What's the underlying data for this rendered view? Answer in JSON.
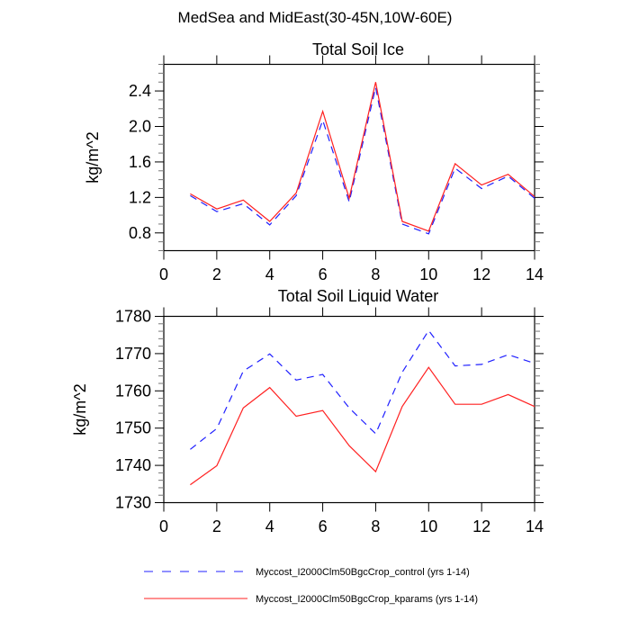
{
  "figure": {
    "title": "MedSea and MidEast(30-45N,10W-60E)"
  },
  "legend": [
    {
      "label": "Myccost_I2000Clm50BgcCrop_control (yrs 1-14)",
      "color": "#2020ff",
      "style": "dashed"
    },
    {
      "label": "Myccost_I2000Clm50BgcCrop_kparams (yrs 1-14)",
      "color": "#ff2020",
      "style": "solid"
    }
  ],
  "chart_data": [
    {
      "type": "line",
      "title": "Total Soil Ice",
      "xlabel": "",
      "ylabel": "kg/m^2",
      "xlim": [
        0,
        14
      ],
      "ylim": [
        0.6,
        2.7
      ],
      "xticks": [
        0,
        2,
        4,
        6,
        8,
        10,
        12,
        14
      ],
      "xtick_labels": [
        "0",
        "2",
        "4",
        "6",
        "8",
        "10",
        "12",
        "14"
      ],
      "yticks": [
        0.8,
        1.2,
        1.6,
        2.0,
        2.4
      ],
      "ytick_labels": [
        "0.8",
        "1.2",
        "1.6",
        "2.0",
        "2.4"
      ],
      "y_minor_step": 0.1,
      "x": [
        1,
        2,
        3,
        4,
        5,
        6,
        7,
        8,
        9,
        10,
        11,
        12,
        13,
        14
      ],
      "series": [
        {
          "name": "Myccost_I2000Clm50BgcCrop_control (yrs 1-14)",
          "color": "#2020ff",
          "style": "dashed",
          "values": [
            1.22,
            1.04,
            1.13,
            0.89,
            1.22,
            2.07,
            1.15,
            2.44,
            0.9,
            0.79,
            1.53,
            1.3,
            1.44,
            1.19
          ]
        },
        {
          "name": "Myccost_I2000Clm50BgcCrop_kparams (yrs 1-14)",
          "color": "#ff2020",
          "style": "solid",
          "values": [
            1.24,
            1.07,
            1.17,
            0.93,
            1.25,
            2.17,
            1.19,
            2.5,
            0.93,
            0.82,
            1.58,
            1.34,
            1.46,
            1.21
          ]
        }
      ],
      "grid": false
    },
    {
      "type": "line",
      "title": "Total Soil Liquid Water",
      "xlabel": "",
      "ylabel": "kg/m^2",
      "xlim": [
        0,
        14
      ],
      "ylim": [
        1730,
        1780
      ],
      "xticks": [
        0,
        2,
        4,
        6,
        8,
        10,
        12,
        14
      ],
      "xtick_labels": [
        "0",
        "2",
        "4",
        "6",
        "8",
        "10",
        "12",
        "14"
      ],
      "yticks": [
        1730,
        1740,
        1750,
        1760,
        1770,
        1780
      ],
      "ytick_labels": [
        "1730",
        "1740",
        "1750",
        "1760",
        "1770",
        "1780"
      ],
      "y_minor_step": 2,
      "x": [
        1,
        2,
        3,
        4,
        5,
        6,
        7,
        8,
        9,
        10,
        11,
        12,
        13,
        14
      ],
      "series": [
        {
          "name": "Myccost_I2000Clm50BgcCrop_control (yrs 1-14)",
          "color": "#2020ff",
          "style": "dashed",
          "values": [
            1744.3,
            1749.9,
            1765.3,
            1769.9,
            1762.9,
            1764.4,
            1755.4,
            1748.5,
            1765.0,
            1776.2,
            1766.7,
            1767.1,
            1769.7,
            1767.4
          ]
        },
        {
          "name": "Myccost_I2000Clm50BgcCrop_kparams (yrs 1-14)",
          "color": "#ff2020",
          "style": "solid",
          "values": [
            1734.8,
            1739.9,
            1755.4,
            1760.9,
            1753.2,
            1754.7,
            1745.3,
            1738.3,
            1755.8,
            1766.3,
            1756.4,
            1756.4,
            1759.0,
            1755.8
          ]
        }
      ],
      "grid": false
    }
  ]
}
